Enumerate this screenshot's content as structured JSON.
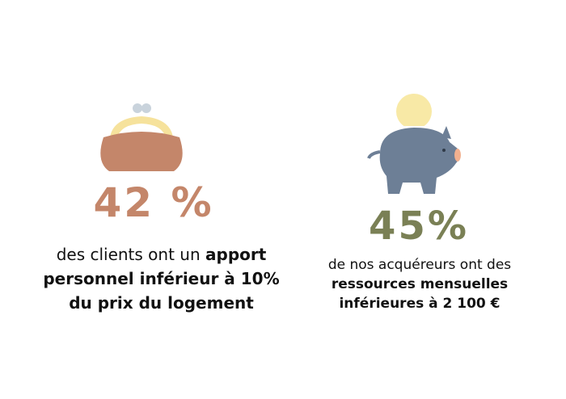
{
  "left": {
    "stat": "42 %",
    "text": "des clients ont un ",
    "bold": "apport personnel inférieur à 10% du prix du logement"
  },
  "right": {
    "stat": "45%",
    "text": "de nos acquéreurs ont des ",
    "bold": "ressources mensuelles inférieures à 2 100 €"
  }
}
